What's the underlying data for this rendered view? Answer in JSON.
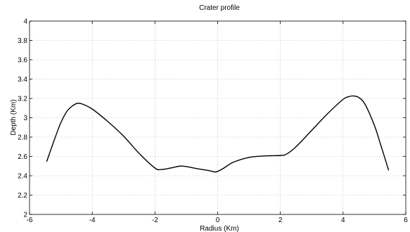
{
  "chart_data": {
    "type": "line",
    "title": "Crater profile",
    "xlabel": "Radius (Km)",
    "ylabel": "Depth (Km)",
    "xlim": [
      -6,
      6
    ],
    "ylim": [
      2,
      4
    ],
    "xticks": [
      -6,
      -4,
      -2,
      0,
      2,
      4,
      6
    ],
    "yticks": [
      2,
      2.2,
      2.4,
      2.6,
      2.8,
      3,
      3.2,
      3.4,
      3.6,
      3.8,
      4
    ],
    "xtick_labels": [
      "-6",
      "-4",
      "-2",
      "0",
      "2",
      "4",
      "6"
    ],
    "ytick_labels": [
      "2",
      "2.2",
      "2.4",
      "2.6",
      "2.8",
      "3",
      "3.2",
      "3.4",
      "3.6",
      "3.8",
      "4"
    ],
    "grid": true,
    "series": [
      {
        "color": "#000000",
        "x": [
          -5.45,
          -5.2,
          -5.0,
          -4.8,
          -4.6,
          -4.45,
          -4.3,
          -4.0,
          -3.5,
          -3.0,
          -2.5,
          -2.0,
          -1.8,
          -1.5,
          -1.2,
          -1.0,
          -0.6,
          -0.3,
          -0.1,
          0.0,
          0.2,
          0.5,
          1.0,
          1.5,
          2.0,
          2.2,
          2.5,
          3.0,
          3.5,
          4.0,
          4.2,
          4.35,
          4.5,
          4.7,
          5.0,
          5.2,
          5.45
        ],
        "y": [
          2.55,
          2.78,
          2.95,
          3.07,
          3.13,
          3.15,
          3.14,
          3.09,
          2.96,
          2.81,
          2.63,
          2.48,
          2.465,
          2.48,
          2.5,
          2.495,
          2.47,
          2.455,
          2.44,
          2.445,
          2.48,
          2.54,
          2.59,
          2.605,
          2.61,
          2.625,
          2.7,
          2.87,
          3.04,
          3.19,
          3.22,
          3.225,
          3.21,
          3.14,
          2.92,
          2.72,
          2.46
        ]
      }
    ]
  }
}
